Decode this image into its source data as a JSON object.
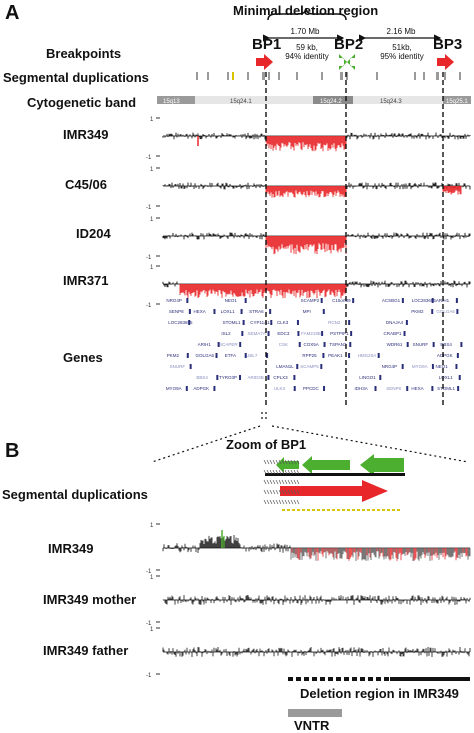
{
  "panelA": {
    "letter": "A",
    "title": "Minimal deletion region",
    "bp_labels": [
      "BP1",
      "BP2",
      "BP3"
    ],
    "dist1": "1.70 Mb",
    "dist2": "2.16 Mb",
    "dup1_l1": "59 kb,",
    "dup1_l2": "94% identity",
    "dup2_l1": "51kb,",
    "dup2_l2": "95% identity",
    "tracks": {
      "breakpoints": "Breakpoints",
      "segdup": "Segmental duplications",
      "cytoband": "Cytogenetic band",
      "genes": "Genes"
    },
    "bands": [
      "15q13",
      "15q24.1",
      "15q24.2",
      "15q24.3",
      "15q25.1"
    ],
    "samples": [
      "IMR349",
      "C45/06",
      "ID204",
      "IMR371"
    ],
    "scale_top": "1",
    "scale_bottom": "-1",
    "gene_names": [
      "NRG4P",
      "SENP8",
      "LOC283655",
      "PKM2",
      "SNURF",
      "MYO9A",
      "HEXA",
      "ARIH1",
      "GOLGA6",
      "BBS4",
      "ADPGK",
      "NEO1",
      "LOXL1",
      "STOML1",
      "ISL2",
      "SCAPER",
      "ETFA",
      "TYRO3P",
      "STRA6",
      "CYP11A1",
      "SEMA7A",
      "UBL7",
      "ARID3B",
      "CLK3",
      "EDC3",
      "CSK",
      "LMAN1L",
      "CPLX3",
      "ULK3",
      "SCAMP2",
      "MPI",
      "FAM219B",
      "COX5A",
      "RPP25",
      "SCAMP5",
      "PPCDC",
      "C15orf39",
      "RCN2",
      "PSTPIP1",
      "TSPAN3",
      "PEAK1",
      "HMG20A",
      "LINGO1",
      "IDH3A",
      "ACSBG1",
      "DNAJA4",
      "CRABP1",
      "WDR61"
    ]
  },
  "panelB": {
    "letter": "B",
    "zoom_title": "Zoom of BP1",
    "segdup": "Segmental duplications",
    "samples": [
      "IMR349",
      "IMR349 mother",
      "IMR349 father"
    ],
    "scale_top": "1",
    "scale_bottom": "-1",
    "deletion_label": "Deletion region in IMR349",
    "vntr_label": "VNTR"
  },
  "colors": {
    "loss": "#e8272a",
    "signal": "#111111",
    "dup_green": "#4caf2f",
    "cyto_light": "#e6e6e6",
    "cyto_dark": "#8a8a8a",
    "gene_blue": "#2a2f7a",
    "vntr_gray": "#9a9a9a",
    "yellow_dup": "#d9c400"
  }
}
